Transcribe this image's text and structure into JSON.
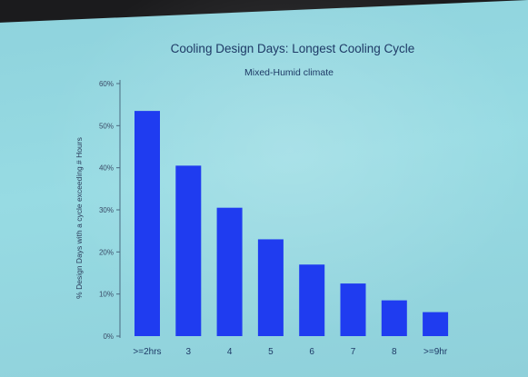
{
  "chart_data": {
    "type": "bar",
    "title": "Cooling Design Days: Longest Cooling Cycle",
    "subtitle": "Mixed-Humid climate",
    "xlabel": "",
    "ylabel": "% Design Days with a cycle exceeding # Hours",
    "categories": [
      ">=2hrs",
      "3",
      "4",
      "5",
      "6",
      "7",
      "8",
      ">=9hr"
    ],
    "values": [
      53.5,
      40.5,
      30.5,
      23,
      17,
      12.5,
      8.5,
      5.7
    ],
    "yticks": [
      "0%",
      "10%",
      "20%",
      "30%",
      "40%",
      "50%",
      "60%"
    ],
    "ylim": [
      0,
      60
    ],
    "grid": false,
    "bar_color": "#1f3cf0",
    "background_color": "#97dbe3"
  }
}
